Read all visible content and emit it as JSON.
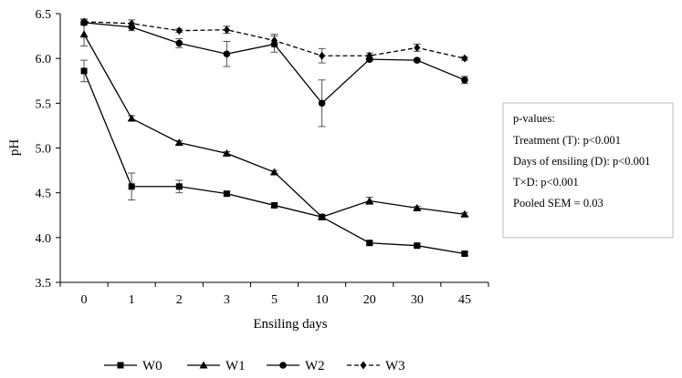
{
  "chart_data": {
    "type": "line",
    "xlabel": "Ensiling days",
    "ylabel": "pH",
    "categories": [
      "0",
      "1",
      "2",
      "3",
      "5",
      "10",
      "20",
      "30",
      "45"
    ],
    "ylim": [
      3.5,
      6.5
    ],
    "yticks": [
      "3.5",
      "4.0",
      "4.5",
      "5.0",
      "5.5",
      "6.0",
      "6.5"
    ],
    "grid": false,
    "legend_position": "bottom",
    "series": [
      {
        "name": "W0",
        "marker": "square",
        "dash": "solid",
        "values": [
          5.86,
          4.57,
          4.57,
          4.49,
          4.36,
          4.23,
          3.94,
          3.91,
          3.82
        ],
        "errors": [
          0.12,
          0.15,
          0.07,
          0.02,
          0.02,
          0.02,
          0.02,
          0.02,
          0.02
        ]
      },
      {
        "name": "W1",
        "marker": "triangle",
        "dash": "solid",
        "values": [
          6.27,
          5.33,
          5.06,
          4.94,
          4.73,
          4.23,
          4.41,
          4.33,
          4.26
        ],
        "errors": [
          0.13,
          0.03,
          0.02,
          0.02,
          0.02,
          0.02,
          0.04,
          0.02,
          0.02
        ]
      },
      {
        "name": "W2",
        "marker": "circle",
        "dash": "solid",
        "values": [
          6.4,
          6.35,
          6.17,
          6.05,
          6.16,
          5.5,
          5.99,
          5.98,
          5.76
        ],
        "errors": [
          0.03,
          0.04,
          0.05,
          0.14,
          0.09,
          0.26,
          0.02,
          0.02,
          0.04
        ]
      },
      {
        "name": "W3",
        "marker": "diamond",
        "dash": "dashed",
        "values": [
          6.41,
          6.39,
          6.31,
          6.32,
          6.2,
          6.03,
          6.03,
          6.12,
          6.0
        ],
        "errors": [
          0.03,
          0.04,
          0.02,
          0.04,
          0.07,
          0.08,
          0.03,
          0.04,
          0.02
        ]
      }
    ],
    "annotation": {
      "lines": [
        "p-values:",
        "Treatment (T): p<0.001",
        "Days of ensiling (D): p<0.001",
        "T×D: p<0.001",
        "Pooled SEM = 0.03"
      ]
    }
  }
}
